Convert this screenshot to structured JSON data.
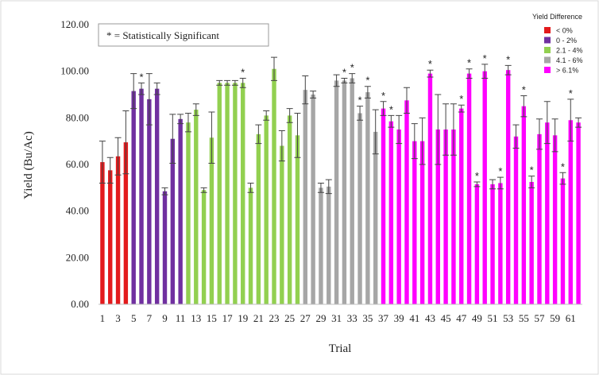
{
  "chart_data": {
    "type": "bar",
    "title": "",
    "xlabel": "Trial",
    "ylabel": "Yield (Bu/Ac)",
    "ylim": [
      0,
      120
    ],
    "yticks": [
      "0.00",
      "20.00",
      "40.00",
      "60.00",
      "80.00",
      "100.00",
      "120.00"
    ],
    "ytick_values": [
      0,
      20,
      40,
      60,
      80,
      100,
      120
    ],
    "xtick_labels": [
      "1",
      "3",
      "5",
      "7",
      "9",
      "11",
      "13",
      "15",
      "17",
      "19",
      "21",
      "23",
      "25",
      "27",
      "29",
      "31",
      "33",
      "35",
      "37",
      "39",
      "41",
      "43",
      "45",
      "47",
      "49",
      "51",
      "53",
      "55",
      "57",
      "59",
      "61"
    ],
    "grid": false,
    "legend_title": "Yield Difference",
    "legend_placement": "top-right",
    "annotation": "* = Statistically Significant",
    "significance_marker": "*",
    "groups": [
      {
        "name": "< 0%",
        "color": "#e31a1c"
      },
      {
        "name": "0 - 2%",
        "color": "#7030a0"
      },
      {
        "name": "2.1 - 4%",
        "color": "#92d050"
      },
      {
        "name": "4.1 - 6%",
        "color": "#a6a6a6"
      },
      {
        "name": "> 6.1%",
        "color": "#ff00ff"
      }
    ],
    "bars": [
      {
        "trial": 1,
        "group": 0,
        "value": 61,
        "error": 9,
        "significant": false
      },
      {
        "trial": 2,
        "group": 0,
        "value": 57.5,
        "error": 5.5,
        "significant": false
      },
      {
        "trial": 3,
        "group": 0,
        "value": 63.5,
        "error": 8,
        "significant": false
      },
      {
        "trial": 4,
        "group": 0,
        "value": 69.5,
        "error": 13.5,
        "significant": false
      },
      {
        "trial": 5,
        "group": 1,
        "value": 91.5,
        "error": 7.5,
        "significant": false
      },
      {
        "trial": 6,
        "group": 1,
        "value": 92.5,
        "error": 2.5,
        "significant": true
      },
      {
        "trial": 7,
        "group": 1,
        "value": 88,
        "error": 11,
        "significant": false
      },
      {
        "trial": 8,
        "group": 1,
        "value": 92.5,
        "error": 2.5,
        "significant": false
      },
      {
        "trial": 9,
        "group": 1,
        "value": 48.5,
        "error": 1.5,
        "significant": false
      },
      {
        "trial": 10,
        "group": 1,
        "value": 71,
        "error": 10.5,
        "significant": false
      },
      {
        "trial": 11,
        "group": 1,
        "value": 79.5,
        "error": 2,
        "significant": false
      },
      {
        "trial": 12,
        "group": 2,
        "value": 78,
        "error": 4,
        "significant": false
      },
      {
        "trial": 13,
        "group": 2,
        "value": 83.5,
        "error": 2.5,
        "significant": false
      },
      {
        "trial": 14,
        "group": 2,
        "value": 49,
        "error": 1,
        "significant": false
      },
      {
        "trial": 15,
        "group": 2,
        "value": 71.5,
        "error": 11,
        "significant": false
      },
      {
        "trial": 16,
        "group": 2,
        "value": 95,
        "error": 1,
        "significant": false
      },
      {
        "trial": 17,
        "group": 2,
        "value": 95,
        "error": 1,
        "significant": false
      },
      {
        "trial": 18,
        "group": 2,
        "value": 95,
        "error": 1,
        "significant": false
      },
      {
        "trial": 19,
        "group": 2,
        "value": 95,
        "error": 2,
        "significant": true
      },
      {
        "trial": 20,
        "group": 2,
        "value": 50,
        "error": 2,
        "significant": false
      },
      {
        "trial": 21,
        "group": 2,
        "value": 73,
        "error": 4,
        "significant": false
      },
      {
        "trial": 22,
        "group": 2,
        "value": 81,
        "error": 2,
        "significant": false
      },
      {
        "trial": 23,
        "group": 2,
        "value": 101,
        "error": 5,
        "significant": false
      },
      {
        "trial": 24,
        "group": 2,
        "value": 68,
        "error": 6.5,
        "significant": false
      },
      {
        "trial": 25,
        "group": 2,
        "value": 81,
        "error": 3,
        "significant": false
      },
      {
        "trial": 26,
        "group": 2,
        "value": 72.5,
        "error": 9.5,
        "significant": false
      },
      {
        "trial": 27,
        "group": 3,
        "value": 92,
        "error": 6,
        "significant": false
      },
      {
        "trial": 28,
        "group": 3,
        "value": 90,
        "error": 1.5,
        "significant": false
      },
      {
        "trial": 29,
        "group": 3,
        "value": 50,
        "error": 2,
        "significant": false
      },
      {
        "trial": 30,
        "group": 3,
        "value": 50.5,
        "error": 3,
        "significant": false
      },
      {
        "trial": 31,
        "group": 3,
        "value": 96,
        "error": 2.5,
        "significant": false
      },
      {
        "trial": 32,
        "group": 3,
        "value": 96,
        "error": 1,
        "significant": true
      },
      {
        "trial": 33,
        "group": 3,
        "value": 97,
        "error": 2,
        "significant": true
      },
      {
        "trial": 34,
        "group": 3,
        "value": 82,
        "error": 3,
        "significant": true
      },
      {
        "trial": 35,
        "group": 3,
        "value": 91,
        "error": 2.5,
        "significant": true
      },
      {
        "trial": 36,
        "group": 3,
        "value": 74,
        "error": 9.5,
        "significant": false
      },
      {
        "trial": 37,
        "group": 4,
        "value": 84,
        "error": 3,
        "significant": true
      },
      {
        "trial": 38,
        "group": 4,
        "value": 78.5,
        "error": 2.5,
        "significant": true
      },
      {
        "trial": 39,
        "group": 4,
        "value": 75,
        "error": 6,
        "significant": false
      },
      {
        "trial": 40,
        "group": 4,
        "value": 87.5,
        "error": 5.5,
        "significant": false
      },
      {
        "trial": 41,
        "group": 4,
        "value": 70,
        "error": 7.5,
        "significant": false
      },
      {
        "trial": 42,
        "group": 4,
        "value": 70,
        "error": 10,
        "significant": false
      },
      {
        "trial": 43,
        "group": 4,
        "value": 99,
        "error": 1.5,
        "significant": true
      },
      {
        "trial": 44,
        "group": 4,
        "value": 75,
        "error": 15,
        "significant": false
      },
      {
        "trial": 45,
        "group": 4,
        "value": 75,
        "error": 11,
        "significant": false
      },
      {
        "trial": 46,
        "group": 4,
        "value": 75,
        "error": 11,
        "significant": false
      },
      {
        "trial": 47,
        "group": 4,
        "value": 84,
        "error": 1.5,
        "significant": true
      },
      {
        "trial": 48,
        "group": 4,
        "value": 99,
        "error": 2,
        "significant": true
      },
      {
        "trial": 49,
        "group": 4,
        "value": 51.5,
        "error": 1,
        "significant": true
      },
      {
        "trial": 50,
        "group": 4,
        "value": 100,
        "error": 3,
        "significant": true
      },
      {
        "trial": 51,
        "group": 4,
        "value": 51.5,
        "error": 2,
        "significant": false
      },
      {
        "trial": 52,
        "group": 4,
        "value": 52,
        "error": 2.5,
        "significant": true
      },
      {
        "trial": 53,
        "group": 4,
        "value": 100.5,
        "error": 2,
        "significant": true
      },
      {
        "trial": 54,
        "group": 4,
        "value": 72,
        "error": 5,
        "significant": false
      },
      {
        "trial": 55,
        "group": 4,
        "value": 85,
        "error": 4.5,
        "significant": true
      },
      {
        "trial": 56,
        "group": 4,
        "value": 52.5,
        "error": 2.5,
        "significant": true
      },
      {
        "trial": 57,
        "group": 4,
        "value": 73,
        "error": 6.5,
        "significant": false
      },
      {
        "trial": 58,
        "group": 4,
        "value": 78,
        "error": 9,
        "significant": false
      },
      {
        "trial": 59,
        "group": 4,
        "value": 72.5,
        "error": 7,
        "significant": false
      },
      {
        "trial": 60,
        "group": 4,
        "value": 54,
        "error": 2.5,
        "significant": true
      },
      {
        "trial": 61,
        "group": 4,
        "value": 79,
        "error": 9,
        "significant": true
      },
      {
        "trial": 62,
        "group": 4,
        "value": 78,
        "error": 2,
        "significant": false
      }
    ]
  }
}
